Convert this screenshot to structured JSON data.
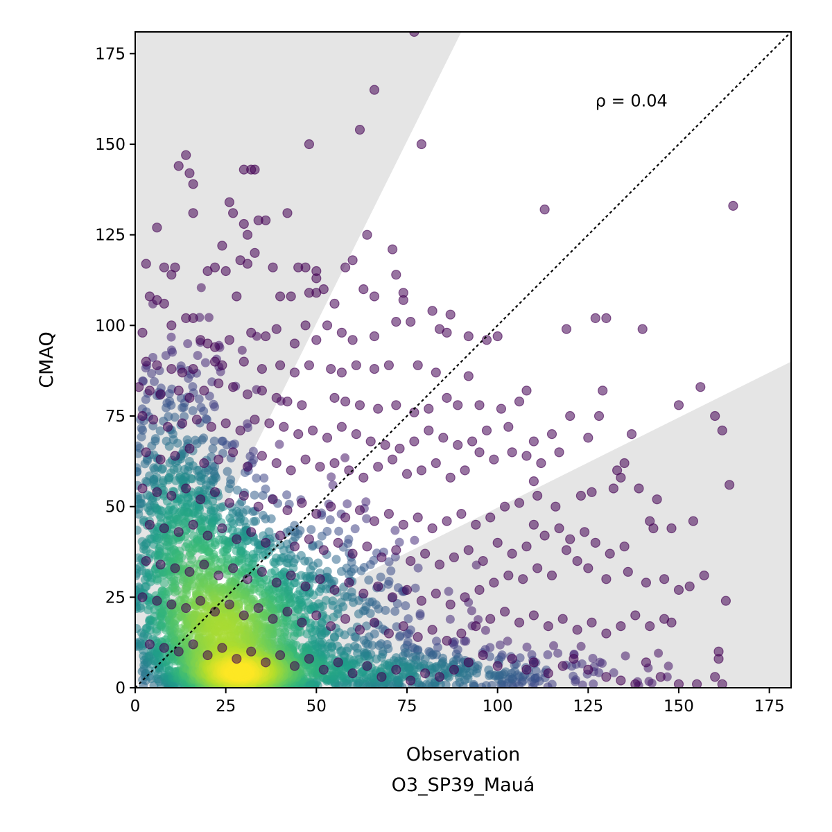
{
  "chart_data": {
    "type": "scatter",
    "title": "",
    "xlabel": "Observation",
    "xlabel_sub": "O3_SP39_Mauá",
    "ylabel": "CMAQ",
    "xlim": [
      0,
      181
    ],
    "ylim": [
      0,
      181
    ],
    "xticks": [
      0,
      25,
      50,
      75,
      100,
      125,
      150,
      175
    ],
    "yticks": [
      0,
      25,
      50,
      75,
      100,
      125,
      150,
      175
    ],
    "grid": false,
    "annotation": {
      "text": "ρ = 0.04",
      "x": 127,
      "y": 162
    },
    "reference_line": {
      "type": "1:1",
      "style": "dotted",
      "color": "#000000"
    },
    "shaded_regions": [
      {
        "name": "upper",
        "polygon": [
          [
            0,
            0
          ],
          [
            90,
            181
          ],
          [
            0,
            181
          ]
        ],
        "color": "#e5e5e5"
      },
      {
        "name": "lower",
        "polygon": [
          [
            0,
            0
          ],
          [
            181,
            0
          ],
          [
            181,
            90
          ]
        ],
        "color": "#e5e5e5"
      }
    ],
    "colormap": "viridis",
    "colors": {
      "low_density": "#440154",
      "high_density": "#fde725",
      "shade": "#e5e5e5"
    },
    "points": [
      [
        77,
        181
      ],
      [
        66,
        165
      ],
      [
        48,
        150
      ],
      [
        79,
        150
      ],
      [
        62,
        154
      ],
      [
        14,
        147
      ],
      [
        12,
        144
      ],
      [
        15,
        142
      ],
      [
        16,
        139
      ],
      [
        30,
        143
      ],
      [
        32,
        143
      ],
      [
        33,
        143
      ],
      [
        16,
        131
      ],
      [
        6,
        127
      ],
      [
        26,
        134
      ],
      [
        27,
        131
      ],
      [
        30,
        128
      ],
      [
        34,
        129
      ],
      [
        36,
        129
      ],
      [
        42,
        131
      ],
      [
        113,
        132
      ],
      [
        165,
        133
      ],
      [
        31,
        125
      ],
      [
        33,
        120
      ],
      [
        64,
        125
      ],
      [
        24,
        122
      ],
      [
        3,
        117
      ],
      [
        8,
        116
      ],
      [
        11,
        116
      ],
      [
        10,
        114
      ],
      [
        20,
        115
      ],
      [
        22,
        116
      ],
      [
        25,
        115
      ],
      [
        29,
        118
      ],
      [
        31,
        117
      ],
      [
        38,
        116
      ],
      [
        45,
        116
      ],
      [
        47,
        116
      ],
      [
        50,
        115
      ],
      [
        50,
        113
      ],
      [
        58,
        116
      ],
      [
        60,
        118
      ],
      [
        71,
        121
      ],
      [
        72,
        114
      ],
      [
        4,
        108
      ],
      [
        6,
        107
      ],
      [
        8,
        106
      ],
      [
        14,
        102
      ],
      [
        16,
        102
      ],
      [
        28,
        108
      ],
      [
        40,
        108
      ],
      [
        43,
        108
      ],
      [
        48,
        109
      ],
      [
        52,
        110
      ],
      [
        50,
        109
      ],
      [
        55,
        106
      ],
      [
        63,
        110
      ],
      [
        66,
        108
      ],
      [
        74,
        109
      ],
      [
        74,
        107
      ],
      [
        82,
        104
      ],
      [
        87,
        103
      ],
      [
        2,
        98
      ],
      [
        10,
        100
      ],
      [
        18,
        96
      ],
      [
        20,
        95
      ],
      [
        22,
        94
      ],
      [
        26,
        96
      ],
      [
        32,
        98
      ],
      [
        36,
        97
      ],
      [
        39,
        99
      ],
      [
        44,
        95
      ],
      [
        47,
        100
      ],
      [
        50,
        96
      ],
      [
        53,
        100
      ],
      [
        57,
        98
      ],
      [
        60,
        96
      ],
      [
        66,
        97
      ],
      [
        72,
        101
      ],
      [
        76,
        101
      ],
      [
        84,
        99
      ],
      [
        86,
        98
      ],
      [
        92,
        97
      ],
      [
        97,
        96
      ],
      [
        100,
        97
      ],
      [
        119,
        99
      ],
      [
        127,
        102
      ],
      [
        130,
        102
      ],
      [
        140,
        99
      ],
      [
        3,
        90
      ],
      [
        6,
        89
      ],
      [
        10,
        88
      ],
      [
        13,
        87
      ],
      [
        16,
        88
      ],
      [
        22,
        90
      ],
      [
        24,
        89
      ],
      [
        30,
        90
      ],
      [
        35,
        88
      ],
      [
        40,
        89
      ],
      [
        44,
        87
      ],
      [
        48,
        89
      ],
      [
        54,
        88
      ],
      [
        57,
        87
      ],
      [
        61,
        89
      ],
      [
        66,
        88
      ],
      [
        70,
        89
      ],
      [
        78,
        89
      ],
      [
        83,
        87
      ],
      [
        92,
        86
      ],
      [
        1,
        83
      ],
      [
        4,
        82
      ],
      [
        7,
        81
      ],
      [
        12,
        82
      ],
      [
        15,
        80
      ],
      [
        19,
        82
      ],
      [
        23,
        84
      ],
      [
        27,
        83
      ],
      [
        31,
        81
      ],
      [
        35,
        82
      ],
      [
        39,
        80
      ],
      [
        42,
        79
      ],
      [
        46,
        78
      ],
      [
        55,
        80
      ],
      [
        58,
        79
      ],
      [
        62,
        78
      ],
      [
        67,
        77
      ],
      [
        72,
        78
      ],
      [
        77,
        76
      ],
      [
        81,
        77
      ],
      [
        86,
        80
      ],
      [
        89,
        78
      ],
      [
        95,
        78
      ],
      [
        101,
        77
      ],
      [
        106,
        79
      ],
      [
        108,
        82
      ],
      [
        120,
        75
      ],
      [
        129,
        82
      ],
      [
        128,
        75
      ],
      [
        150,
        78
      ],
      [
        156,
        83
      ],
      [
        160,
        75
      ],
      [
        162,
        71
      ],
      [
        2,
        75
      ],
      [
        5,
        74
      ],
      [
        9,
        72
      ],
      [
        13,
        73
      ],
      [
        17,
        74
      ],
      [
        21,
        72
      ],
      [
        25,
        73
      ],
      [
        29,
        71
      ],
      [
        33,
        74
      ],
      [
        37,
        73
      ],
      [
        41,
        72
      ],
      [
        45,
        70
      ],
      [
        49,
        71
      ],
      [
        53,
        69
      ],
      [
        57,
        72
      ],
      [
        61,
        70
      ],
      [
        65,
        68
      ],
      [
        69,
        67
      ],
      [
        73,
        66
      ],
      [
        77,
        68
      ],
      [
        81,
        71
      ],
      [
        85,
        69
      ],
      [
        89,
        67
      ],
      [
        93,
        68
      ],
      [
        97,
        71
      ],
      [
        103,
        72
      ],
      [
        110,
        68
      ],
      [
        115,
        70
      ],
      [
        125,
        69
      ],
      [
        137,
        70
      ],
      [
        3,
        65
      ],
      [
        7,
        63
      ],
      [
        11,
        64
      ],
      [
        15,
        66
      ],
      [
        19,
        62
      ],
      [
        23,
        63
      ],
      [
        27,
        65
      ],
      [
        31,
        61
      ],
      [
        35,
        64
      ],
      [
        39,
        62
      ],
      [
        43,
        60
      ],
      [
        47,
        63
      ],
      [
        51,
        61
      ],
      [
        55,
        62
      ],
      [
        59,
        60
      ],
      [
        63,
        58
      ],
      [
        67,
        61
      ],
      [
        71,
        63
      ],
      [
        75,
        59
      ],
      [
        79,
        60
      ],
      [
        83,
        62
      ],
      [
        87,
        58
      ],
      [
        91,
        60
      ],
      [
        95,
        65
      ],
      [
        99,
        63
      ],
      [
        104,
        65
      ],
      [
        108,
        64
      ],
      [
        112,
        62
      ],
      [
        117,
        65
      ],
      [
        135,
        62
      ],
      [
        133,
        60
      ],
      [
        134,
        58
      ],
      [
        2,
        55
      ],
      [
        6,
        54
      ],
      [
        10,
        53
      ],
      [
        14,
        55
      ],
      [
        18,
        52
      ],
      [
        22,
        54
      ],
      [
        26,
        51
      ],
      [
        30,
        53
      ],
      [
        34,
        50
      ],
      [
        38,
        52
      ],
      [
        42,
        49
      ],
      [
        46,
        51
      ],
      [
        50,
        48
      ],
      [
        54,
        50
      ],
      [
        58,
        47
      ],
      [
        62,
        49
      ],
      [
        66,
        46
      ],
      [
        70,
        48
      ],
      [
        74,
        45
      ],
      [
        78,
        47
      ],
      [
        82,
        44
      ],
      [
        86,
        46
      ],
      [
        90,
        48
      ],
      [
        94,
        45
      ],
      [
        98,
        47
      ],
      [
        102,
        50
      ],
      [
        106,
        51
      ],
      [
        110,
        57
      ],
      [
        111,
        53
      ],
      [
        116,
        50
      ],
      [
        123,
        53
      ],
      [
        126,
        54
      ],
      [
        139,
        55
      ],
      [
        132,
        55
      ],
      [
        144,
        52
      ],
      [
        164,
        56
      ],
      [
        4,
        45
      ],
      [
        8,
        44
      ],
      [
        12,
        43
      ],
      [
        16,
        45
      ],
      [
        20,
        42
      ],
      [
        24,
        44
      ],
      [
        28,
        41
      ],
      [
        32,
        43
      ],
      [
        36,
        40
      ],
      [
        40,
        42
      ],
      [
        44,
        39
      ],
      [
        48,
        41
      ],
      [
        52,
        38
      ],
      [
        56,
        40
      ],
      [
        60,
        37
      ],
      [
        64,
        39
      ],
      [
        68,
        36
      ],
      [
        72,
        38
      ],
      [
        76,
        35
      ],
      [
        80,
        37
      ],
      [
        84,
        34
      ],
      [
        88,
        36
      ],
      [
        92,
        38
      ],
      [
        96,
        35
      ],
      [
        100,
        40
      ],
      [
        104,
        37
      ],
      [
        108,
        39
      ],
      [
        110,
        45
      ],
      [
        113,
        42
      ],
      [
        117,
        44
      ],
      [
        120,
        41
      ],
      [
        124,
        43
      ],
      [
        127,
        40
      ],
      [
        131,
        37
      ],
      [
        135,
        39
      ],
      [
        142,
        46
      ],
      [
        143,
        44
      ],
      [
        148,
        44
      ],
      [
        154,
        46
      ],
      [
        3,
        35
      ],
      [
        7,
        34
      ],
      [
        11,
        33
      ],
      [
        15,
        32
      ],
      [
        19,
        34
      ],
      [
        23,
        31
      ],
      [
        27,
        33
      ],
      [
        31,
        30
      ],
      [
        35,
        32
      ],
      [
        39,
        29
      ],
      [
        43,
        31
      ],
      [
        47,
        28
      ],
      [
        51,
        30
      ],
      [
        55,
        27
      ],
      [
        59,
        29
      ],
      [
        63,
        26
      ],
      [
        67,
        28
      ],
      [
        71,
        25
      ],
      [
        75,
        27
      ],
      [
        79,
        24
      ],
      [
        83,
        26
      ],
      [
        87,
        23
      ],
      [
        91,
        25
      ],
      [
        95,
        27
      ],
      [
        99,
        29
      ],
      [
        103,
        31
      ],
      [
        107,
        30
      ],
      [
        111,
        33
      ],
      [
        115,
        31
      ],
      [
        119,
        38
      ],
      [
        122,
        35
      ],
      [
        125,
        33
      ],
      [
        130,
        30
      ],
      [
        136,
        32
      ],
      [
        141,
        29
      ],
      [
        146,
        30
      ],
      [
        150,
        27
      ],
      [
        153,
        28
      ],
      [
        157,
        31
      ],
      [
        2,
        25
      ],
      [
        6,
        24
      ],
      [
        10,
        23
      ],
      [
        14,
        22
      ],
      [
        18,
        24
      ],
      [
        22,
        21
      ],
      [
        26,
        23
      ],
      [
        30,
        20
      ],
      [
        34,
        22
      ],
      [
        38,
        19
      ],
      [
        42,
        21
      ],
      [
        46,
        18
      ],
      [
        50,
        20
      ],
      [
        54,
        17
      ],
      [
        58,
        19
      ],
      [
        62,
        16
      ],
      [
        66,
        18
      ],
      [
        70,
        15
      ],
      [
        74,
        17
      ],
      [
        78,
        14
      ],
      [
        82,
        16
      ],
      [
        86,
        13
      ],
      [
        90,
        15
      ],
      [
        94,
        17
      ],
      [
        98,
        19
      ],
      [
        102,
        21
      ],
      [
        106,
        18
      ],
      [
        110,
        20
      ],
      [
        114,
        17
      ],
      [
        118,
        19
      ],
      [
        122,
        16
      ],
      [
        126,
        18
      ],
      [
        130,
        15
      ],
      [
        134,
        17
      ],
      [
        138,
        20
      ],
      [
        142,
        17
      ],
      [
        146,
        19
      ],
      [
        148,
        18
      ],
      [
        163,
        24
      ],
      [
        4,
        12
      ],
      [
        8,
        11
      ],
      [
        12,
        10
      ],
      [
        16,
        12
      ],
      [
        20,
        9
      ],
      [
        24,
        11
      ],
      [
        28,
        8
      ],
      [
        32,
        10
      ],
      [
        36,
        7
      ],
      [
        40,
        9
      ],
      [
        44,
        6
      ],
      [
        48,
        8
      ],
      [
        52,
        5
      ],
      [
        56,
        7
      ],
      [
        60,
        4
      ],
      [
        64,
        6
      ],
      [
        68,
        3
      ],
      [
        72,
        5
      ],
      [
        76,
        2
      ],
      [
        80,
        4
      ],
      [
        84,
        3
      ],
      [
        88,
        5
      ],
      [
        92,
        7
      ],
      [
        96,
        9
      ],
      [
        100,
        6
      ],
      [
        104,
        8
      ],
      [
        108,
        5
      ],
      [
        110,
        7
      ],
      [
        114,
        4
      ],
      [
        118,
        6
      ],
      [
        121,
        8
      ],
      [
        125,
        5
      ],
      [
        130,
        3
      ],
      [
        134,
        2
      ],
      [
        138,
        1
      ],
      [
        141,
        7
      ],
      [
        145,
        3
      ],
      [
        150,
        1
      ],
      [
        155,
        1
      ],
      [
        160,
        3
      ],
      [
        161,
        8
      ],
      [
        161,
        10
      ],
      [
        162,
        1
      ]
    ],
    "density_clusters": [
      {
        "x": 29,
        "y": 3,
        "sx": 9,
        "sy": 4,
        "n": 900
      },
      {
        "x": 25,
        "y": 12,
        "sx": 14,
        "sy": 10,
        "n": 700
      },
      {
        "x": 18,
        "y": 30,
        "sx": 14,
        "sy": 18,
        "n": 700
      },
      {
        "x": 40,
        "y": 20,
        "sx": 22,
        "sy": 16,
        "n": 600
      },
      {
        "x": 10,
        "y": 55,
        "sx": 10,
        "sy": 20,
        "n": 400
      },
      {
        "x": 70,
        "y": 4,
        "sx": 30,
        "sy": 4,
        "n": 500
      }
    ]
  }
}
